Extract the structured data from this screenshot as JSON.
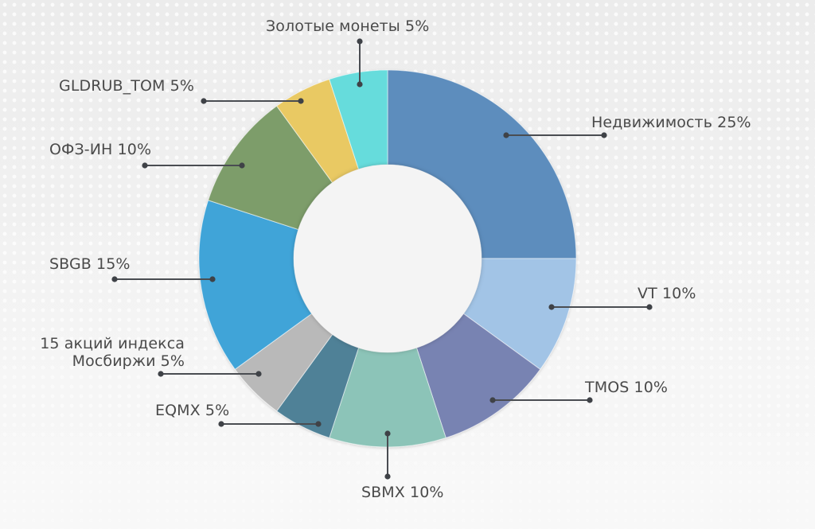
{
  "chart_data": {
    "type": "pie",
    "subtype": "donut",
    "title": "",
    "categories": [
      "Недвижимость",
      "VT",
      "TMOS",
      "SBMX",
      "EQMX",
      "15 акций индекса Мосбиржи",
      "SBGB",
      "ОФЗ-ИН",
      "GLDRUB_TOM",
      "Золотые монеты"
    ],
    "values": [
      25,
      10,
      10,
      10,
      5,
      5,
      15,
      10,
      5,
      5
    ],
    "unit": "%",
    "colors": [
      "#5d8dbd",
      "#a2c4e6",
      "#7883b2",
      "#8cc4b8",
      "#4f8197",
      "#b9b9b9",
      "#41a4d8",
      "#7d9d6a",
      "#e9c964",
      "#66dcdc"
    ],
    "start_angle_deg": 0,
    "direction": "clockwise",
    "labels": [
      {
        "text": "Недвижимость 25%"
      },
      {
        "text": "VT 10%"
      },
      {
        "text": "TMOS 10%"
      },
      {
        "text": "SBMX 10%"
      },
      {
        "text": "EQMX 5%"
      },
      {
        "line1": "15 акций индекса",
        "line2": "Мосбиржи 5%"
      },
      {
        "text": "SBGB 15%"
      },
      {
        "text": "ОФЗ-ИН 10%"
      },
      {
        "text": "GLDRUB_TOM 5%"
      },
      {
        "text": "Золотые монеты 5%"
      }
    ],
    "legend": "none (callout labels)"
  }
}
